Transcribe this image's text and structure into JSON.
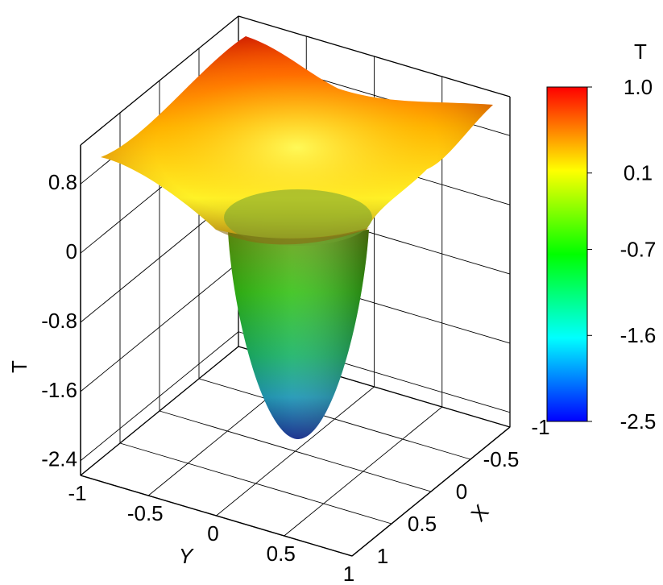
{
  "chart_data": {
    "type": "surface3d",
    "xlabel": "X",
    "ylabel": "Y",
    "zlabel": "T",
    "xlim": [
      -1,
      1
    ],
    "ylim": [
      -1,
      1
    ],
    "zlim": [
      -2.57,
      1.25
    ],
    "xticks": [
      -1,
      -0.5,
      0,
      0.5,
      1
    ],
    "yticks": [
      -1,
      -0.5,
      0,
      0.5,
      1
    ],
    "zticks": [
      0.8,
      0,
      -0.8,
      -1.6,
      -2.4
    ],
    "grid": true,
    "colorbar": {
      "title": "T",
      "clim": [
        -2.5,
        1
      ],
      "ticks": [
        {
          "value": 1,
          "label": "1.0"
        },
        0.1,
        -0.7,
        -1.6,
        -2.5
      ],
      "colors": [
        "#0000ff",
        "#00ffff",
        "#00ff00",
        "#ffff00",
        "#ff0000"
      ]
    }
  }
}
